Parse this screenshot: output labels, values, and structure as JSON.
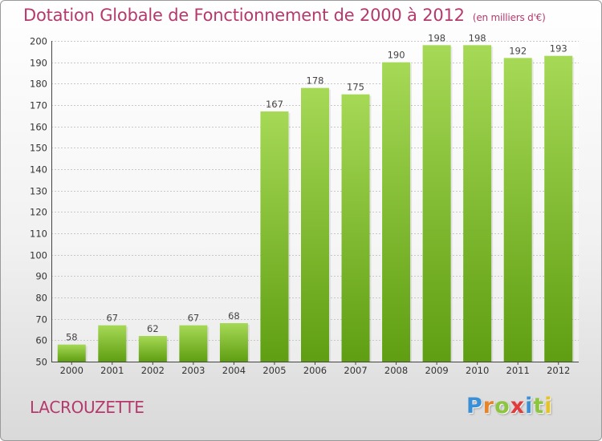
{
  "title": "Dotation Globale de Fonctionnement de 2000 à 2012",
  "subtitle": "(en milliers d'€)",
  "commune": "LACROUZETTE",
  "logo": {
    "letters": [
      "P",
      "r",
      "o",
      "x",
      "i",
      "t",
      "i"
    ],
    "colors": [
      "#3a8fd6",
      "#e8832a",
      "#8cc63f",
      "#e23b3b",
      "#3a8fd6",
      "#8cc63f",
      "#e8c21e"
    ]
  },
  "colors": {
    "bar_light": "#a6d956",
    "bar_dark": "#5f9e12",
    "title": "#b5396c"
  },
  "chart_data": {
    "type": "bar",
    "title": "Dotation Globale de Fonctionnement de 2000 à 2012",
    "subtitle": "(en milliers d'€)",
    "categories": [
      "2000",
      "2001",
      "2002",
      "2003",
      "2004",
      "2005",
      "2006",
      "2007",
      "2008",
      "2009",
      "2010",
      "2011",
      "2012"
    ],
    "values": [
      58,
      67,
      62,
      67,
      68,
      167,
      178,
      175,
      190,
      198,
      198,
      192,
      193
    ],
    "ylim": [
      50,
      200
    ],
    "yticks": [
      50,
      60,
      70,
      80,
      90,
      100,
      110,
      120,
      130,
      140,
      150,
      160,
      170,
      180,
      190,
      200
    ],
    "grid": true,
    "data_labels": true
  }
}
